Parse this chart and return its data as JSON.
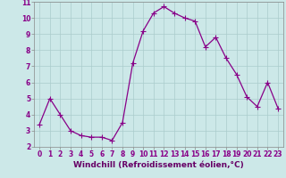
{
  "x": [
    0,
    1,
    2,
    3,
    4,
    5,
    6,
    7,
    8,
    9,
    10,
    11,
    12,
    13,
    14,
    15,
    16,
    17,
    18,
    19,
    20,
    21,
    22,
    23
  ],
  "y": [
    3.4,
    5.0,
    4.0,
    3.0,
    2.7,
    2.6,
    2.6,
    2.4,
    3.5,
    7.2,
    9.2,
    10.3,
    10.7,
    10.3,
    10.0,
    9.8,
    8.2,
    8.8,
    7.5,
    6.5,
    5.1,
    4.5,
    6.0,
    4.4
  ],
  "line_color": "#880088",
  "marker": "+",
  "marker_size": 4,
  "marker_linewidth": 0.8,
  "line_width": 0.9,
  "bg_color": "#cce8e8",
  "grid_color": "#aacccc",
  "xlabel": "Windchill (Refroidissement éolien,°C)",
  "xlabel_color": "#660066",
  "xlim": [
    -0.5,
    23.5
  ],
  "ylim": [
    2,
    11
  ],
  "yticks": [
    2,
    3,
    4,
    5,
    6,
    7,
    8,
    9,
    10,
    11
  ],
  "xticks": [
    0,
    1,
    2,
    3,
    4,
    5,
    6,
    7,
    8,
    9,
    10,
    11,
    12,
    13,
    14,
    15,
    16,
    17,
    18,
    19,
    20,
    21,
    22,
    23
  ],
  "tick_label_fontsize": 5.5,
  "xlabel_fontsize": 6.5
}
